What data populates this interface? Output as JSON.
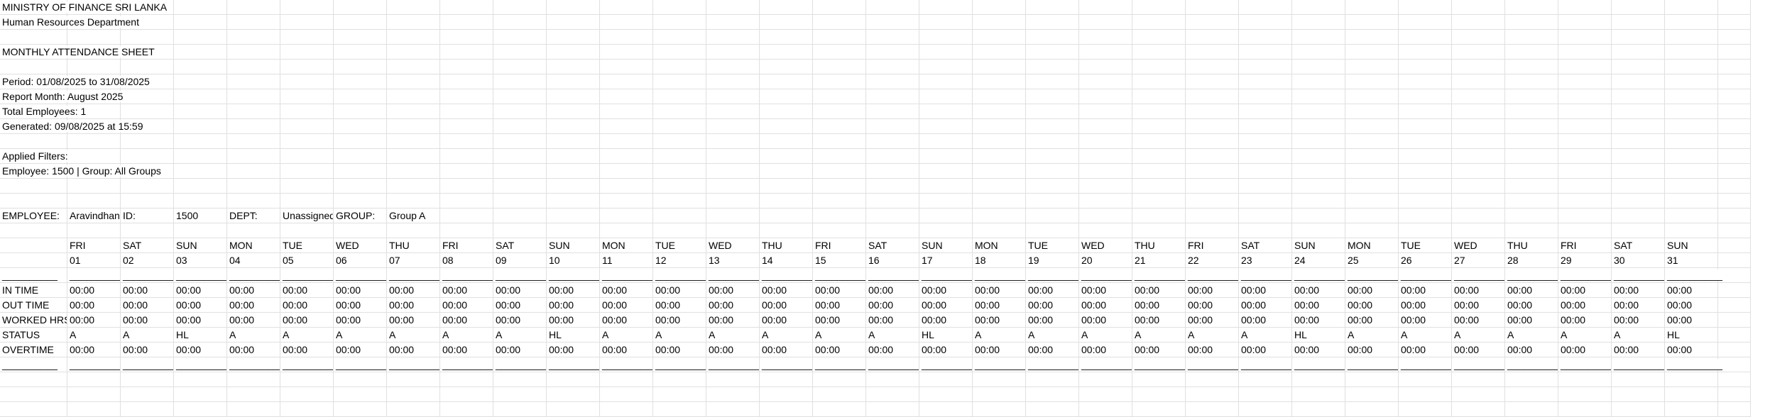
{
  "header": {
    "ministry": "MINISTRY OF FINANCE SRI LANKA",
    "department": "Human Resources Department",
    "sheet_title": "MONTHLY ATTENDANCE SHEET",
    "period": "Period: 01/08/2025 to 31/08/2025",
    "report_month": "Report Month: August 2025",
    "total_employees": "Total Employees: 1",
    "generated": "Generated: 09/08/2025 at 15:59",
    "applied_filters": "Applied Filters:",
    "filters": "Employee: 1500   |   Group: All Groups"
  },
  "employee": {
    "employee_label": "EMPLOYEE:",
    "employee_name": "Aravindhan",
    "id_label": "ID:",
    "id_value": "1500",
    "dept_label": "DEPT:",
    "dept_value": "Unassigned",
    "group_label": "GROUP:",
    "group_value": "Group A"
  },
  "separator": "__________",
  "days": [
    {
      "dow": "FRI",
      "date": "01"
    },
    {
      "dow": "SAT",
      "date": "02"
    },
    {
      "dow": "SUN",
      "date": "03"
    },
    {
      "dow": "MON",
      "date": "04"
    },
    {
      "dow": "TUE",
      "date": "05"
    },
    {
      "dow": "WED",
      "date": "06"
    },
    {
      "dow": "THU",
      "date": "07"
    },
    {
      "dow": "FRI",
      "date": "08"
    },
    {
      "dow": "SAT",
      "date": "09"
    },
    {
      "dow": "SUN",
      "date": "10"
    },
    {
      "dow": "MON",
      "date": "11"
    },
    {
      "dow": "TUE",
      "date": "12"
    },
    {
      "dow": "WED",
      "date": "13"
    },
    {
      "dow": "THU",
      "date": "14"
    },
    {
      "dow": "FRI",
      "date": "15"
    },
    {
      "dow": "SAT",
      "date": "16"
    },
    {
      "dow": "SUN",
      "date": "17"
    },
    {
      "dow": "MON",
      "date": "18"
    },
    {
      "dow": "TUE",
      "date": "19"
    },
    {
      "dow": "WED",
      "date": "20"
    },
    {
      "dow": "THU",
      "date": "21"
    },
    {
      "dow": "FRI",
      "date": "22"
    },
    {
      "dow": "SAT",
      "date": "23"
    },
    {
      "dow": "SUN",
      "date": "24"
    },
    {
      "dow": "MON",
      "date": "25"
    },
    {
      "dow": "TUE",
      "date": "26"
    },
    {
      "dow": "WED",
      "date": "27"
    },
    {
      "dow": "THU",
      "date": "28"
    },
    {
      "dow": "FRI",
      "date": "29"
    },
    {
      "dow": "SAT",
      "date": "30"
    },
    {
      "dow": "SUN",
      "date": "31"
    }
  ],
  "rows": [
    {
      "label": "IN TIME",
      "values": [
        "00:00",
        "00:00",
        "00:00",
        "00:00",
        "00:00",
        "00:00",
        "00:00",
        "00:00",
        "00:00",
        "00:00",
        "00:00",
        "00:00",
        "00:00",
        "00:00",
        "00:00",
        "00:00",
        "00:00",
        "00:00",
        "00:00",
        "00:00",
        "00:00",
        "00:00",
        "00:00",
        "00:00",
        "00:00",
        "00:00",
        "00:00",
        "00:00",
        "00:00",
        "00:00",
        "00:00"
      ]
    },
    {
      "label": "OUT TIME",
      "values": [
        "00:00",
        "00:00",
        "00:00",
        "00:00",
        "00:00",
        "00:00",
        "00:00",
        "00:00",
        "00:00",
        "00:00",
        "00:00",
        "00:00",
        "00:00",
        "00:00",
        "00:00",
        "00:00",
        "00:00",
        "00:00",
        "00:00",
        "00:00",
        "00:00",
        "00:00",
        "00:00",
        "00:00",
        "00:00",
        "00:00",
        "00:00",
        "00:00",
        "00:00",
        "00:00",
        "00:00"
      ]
    },
    {
      "label": "WORKED HRS",
      "values": [
        "00:00",
        "00:00",
        "00:00",
        "00:00",
        "00:00",
        "00:00",
        "00:00",
        "00:00",
        "00:00",
        "00:00",
        "00:00",
        "00:00",
        "00:00",
        "00:00",
        "00:00",
        "00:00",
        "00:00",
        "00:00",
        "00:00",
        "00:00",
        "00:00",
        "00:00",
        "00:00",
        "00:00",
        "00:00",
        "00:00",
        "00:00",
        "00:00",
        "00:00",
        "00:00",
        "00:00"
      ]
    },
    {
      "label": "STATUS",
      "values": [
        "A",
        "A",
        "HL",
        "A",
        "A",
        "A",
        "A",
        "A",
        "A",
        "HL",
        "A",
        "A",
        "A",
        "A",
        "A",
        "A",
        "HL",
        "A",
        "A",
        "A",
        "A",
        "A",
        "A",
        "HL",
        "A",
        "A",
        "A",
        "A",
        "A",
        "A",
        "HL"
      ]
    },
    {
      "label": "OVERTIME",
      "values": [
        "00:00",
        "00:00",
        "00:00",
        "00:00",
        "00:00",
        "00:00",
        "00:00",
        "00:00",
        "00:00",
        "00:00",
        "00:00",
        "00:00",
        "00:00",
        "00:00",
        "00:00",
        "00:00",
        "00:00",
        "00:00",
        "00:00",
        "00:00",
        "00:00",
        "00:00",
        "00:00",
        "00:00",
        "00:00",
        "00:00",
        "00:00",
        "00:00",
        "00:00",
        "00:00",
        "00:00"
      ]
    }
  ]
}
